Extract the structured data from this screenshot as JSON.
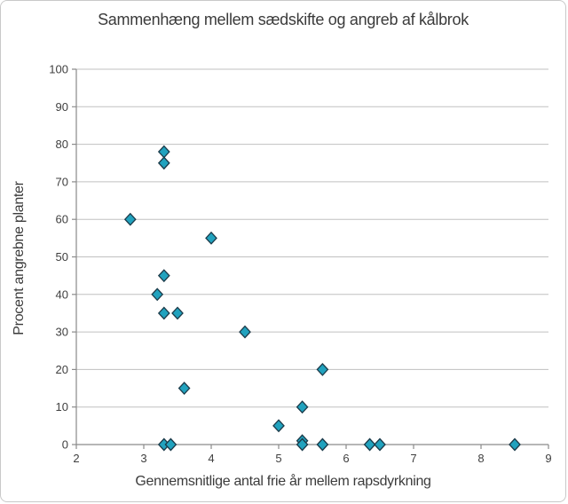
{
  "chart_data": {
    "type": "scatter",
    "title": "Sammenhæng mellem sædskifte og angreb af kålbrok",
    "xlabel": "Gennemsnitlige antal frie år mellem rapsdyrkning",
    "ylabel": "Procent angrebne planter",
    "xlim": [
      2,
      9
    ],
    "ylim": [
      0,
      100
    ],
    "x_ticks": [
      2,
      3,
      4,
      5,
      6,
      7,
      8,
      9
    ],
    "y_ticks": [
      0,
      10,
      20,
      30,
      40,
      50,
      60,
      70,
      80,
      90,
      100
    ],
    "grid": "horizontal-only",
    "legend": "none",
    "marker": {
      "shape": "diamond",
      "size": 12
    },
    "points": [
      {
        "x": 2.8,
        "y": 60
      },
      {
        "x": 3.2,
        "y": 40
      },
      {
        "x": 3.3,
        "y": 78
      },
      {
        "x": 3.3,
        "y": 75
      },
      {
        "x": 3.3,
        "y": 45
      },
      {
        "x": 3.3,
        "y": 35
      },
      {
        "x": 3.5,
        "y": 35
      },
      {
        "x": 3.6,
        "y": 15
      },
      {
        "x": 3.3,
        "y": 0
      },
      {
        "x": 3.4,
        "y": 0
      },
      {
        "x": 4.0,
        "y": 55
      },
      {
        "x": 4.5,
        "y": 30
      },
      {
        "x": 5.0,
        "y": 5
      },
      {
        "x": 5.35,
        "y": 10
      },
      {
        "x": 5.35,
        "y": 1
      },
      {
        "x": 5.35,
        "y": 0
      },
      {
        "x": 5.65,
        "y": 20
      },
      {
        "x": 5.65,
        "y": 0
      },
      {
        "x": 6.35,
        "y": 0
      },
      {
        "x": 6.5,
        "y": 0
      },
      {
        "x": 8.5,
        "y": 0
      }
    ],
    "colors": {
      "marker_fill": "#21A2BE",
      "marker_stroke": "#1B3A49",
      "gridline": "#C0C0C0",
      "axis": "#8A8A8A",
      "text": "#3F3F3F",
      "background": "#FFFFFF",
      "border": "#C9C9C9"
    }
  }
}
